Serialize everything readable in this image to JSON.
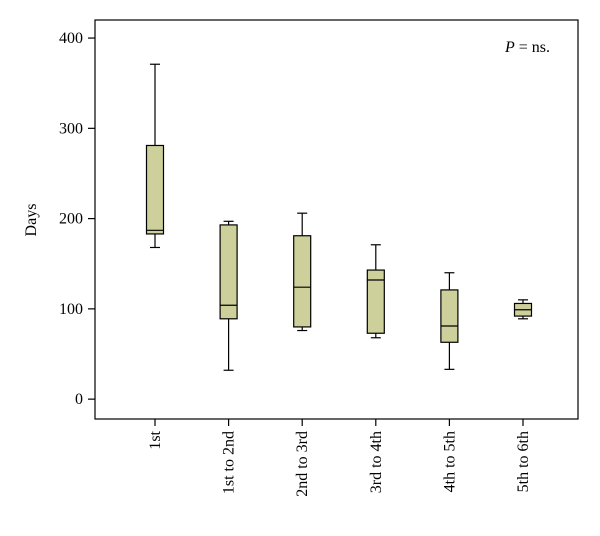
{
  "chart_data": {
    "type": "box",
    "title": "",
    "xlabel": "",
    "ylabel": "Days",
    "ylim": [
      -22,
      420
    ],
    "yticks": [
      0,
      100,
      200,
      300,
      400
    ],
    "ytick_labels": [
      "0",
      "100",
      "200",
      "300",
      "400"
    ],
    "annotation": {
      "italic": "P",
      "rest": " = ns."
    },
    "box_color": "#cdd09a",
    "categories": [
      "1st",
      "1st to 2nd",
      "2nd to 3rd",
      "3rd to 4th",
      "4th to 5th",
      "5th to 6th"
    ],
    "boxes": [
      {
        "category": "1st",
        "whisker_low": 168,
        "q1": 183,
        "median": 187,
        "q3": 281,
        "whisker_high": 371
      },
      {
        "category": "1st to 2nd",
        "whisker_low": 32,
        "q1": 89,
        "median": 104,
        "q3": 193,
        "whisker_high": 197
      },
      {
        "category": "2nd to 3rd",
        "whisker_low": 76,
        "q1": 80,
        "median": 124,
        "q3": 181,
        "whisker_high": 206
      },
      {
        "category": "3rd to 4th",
        "whisker_low": 68,
        "q1": 73,
        "median": 132,
        "q3": 143,
        "whisker_high": 171
      },
      {
        "category": "4th to 5th",
        "whisker_low": 33,
        "q1": 63,
        "median": 81,
        "q3": 121,
        "whisker_high": 140
      },
      {
        "category": "5th to 6th",
        "whisker_low": 89,
        "q1": 92,
        "median": 99,
        "q3": 106,
        "whisker_high": 110
      }
    ]
  }
}
